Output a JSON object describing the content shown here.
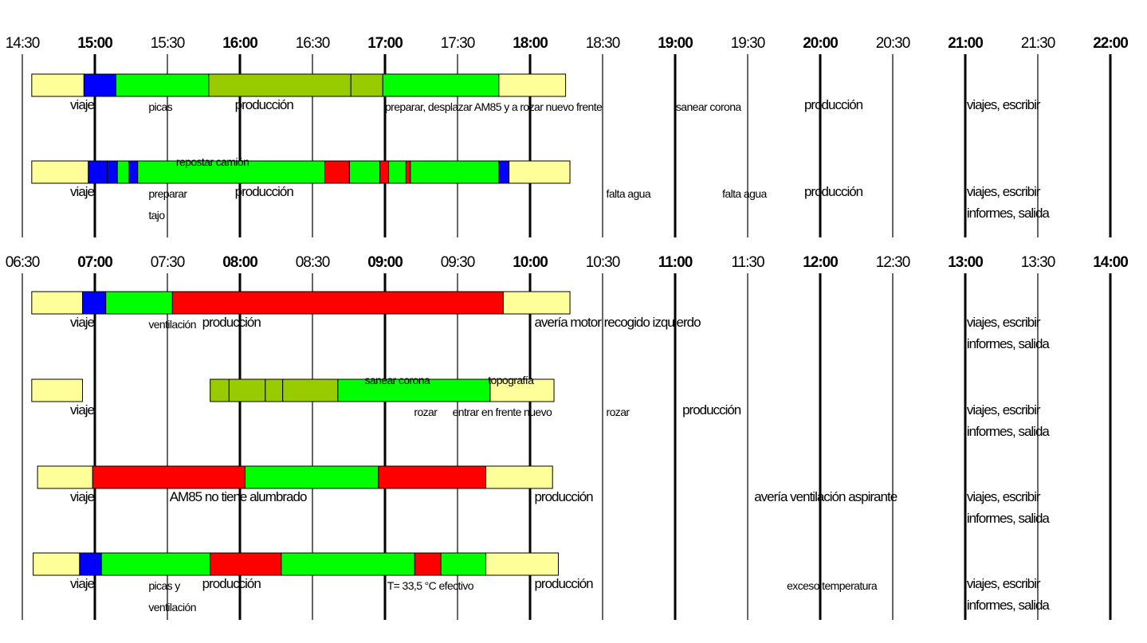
{
  "palette": {
    "travel": "#ffff99",
    "prep": "#0000ff",
    "production": "#00ff00",
    "task": "#99cc00",
    "fault": "#ff0000",
    "edge": "#000000"
  },
  "header_top": {
    "labels": [
      "14:30",
      "15:00",
      "15:30",
      "16:00",
      "16:30",
      "17:00",
      "17:30",
      "18:00",
      "18:30",
      "19:00",
      "19:30",
      "20:00",
      "20:30",
      "21:00",
      "21:30",
      "22:00"
    ]
  },
  "header_bottom": {
    "labels": [
      "06:30",
      "07:00",
      "07:30",
      "08:00",
      "08:30",
      "09:00",
      "09:30",
      "10:00",
      "10:30",
      "11:00",
      "11:30",
      "12:00",
      "12:30",
      "13:00",
      "13:30",
      "14:00"
    ]
  },
  "rows": [
    {
      "start_col": 0.13,
      "segments": [
        {
          "dur": 0.36,
          "type": "travel"
        },
        {
          "dur": 0.22,
          "type": "prep"
        },
        {
          "dur": 0.64,
          "type": "production"
        },
        {
          "dur": 0.98,
          "type": "task"
        },
        {
          "dur": 0.22,
          "type": "task"
        },
        {
          "dur": 0.8,
          "type": "production"
        },
        {
          "dur": 0.46,
          "type": "travel"
        }
      ],
      "labels": [
        {
          "text": "viaje",
          "col": 0.66,
          "dy": 16,
          "size": "lg"
        },
        {
          "text": "picas",
          "col": 1.74,
          "dy": 18,
          "size": "sm"
        },
        {
          "text": "producción",
          "col": 2.93,
          "dy": 16,
          "size": "lg"
        },
        {
          "text": "preparar, desplazar AM85 y  a rozar nuevo frente",
          "col": 5.0,
          "dy": 18,
          "size": "sm"
        },
        {
          "text": "sanear corona",
          "col": 9.01,
          "dy": 18,
          "size": "sm"
        },
        {
          "text": "producción",
          "col": 10.78,
          "dy": 16,
          "size": "lg"
        },
        {
          "text": "viajes, escribir",
          "col": 13.02,
          "dy": 16,
          "size": "lg"
        }
      ]
    },
    {
      "start_col": 0.13,
      "segments": [
        {
          "dur": 0.39,
          "type": "travel"
        },
        {
          "dur": 0.13,
          "type": "prep"
        },
        {
          "dur": 0.07,
          "type": "prep"
        },
        {
          "dur": 0.08,
          "type": "production"
        },
        {
          "dur": 0.06,
          "type": "prep"
        },
        {
          "dur": 1.29,
          "type": "production"
        },
        {
          "dur": 0.17,
          "type": "fault"
        },
        {
          "dur": 0.21,
          "type": "production"
        },
        {
          "dur": 0.06,
          "type": "fault"
        },
        {
          "dur": 0.12,
          "type": "production"
        },
        {
          "dur": 0.03,
          "type": "fault"
        },
        {
          "dur": 0.61,
          "type": "production"
        },
        {
          "dur": 0.07,
          "type": "prep"
        },
        {
          "dur": 0.42,
          "type": "travel"
        }
      ],
      "labels": [
        {
          "text": "repostar camión",
          "col": 2.12,
          "dy": -22,
          "size": "sm"
        },
        {
          "text": "viaje",
          "col": 0.66,
          "dy": 16,
          "size": "lg"
        },
        {
          "text": "preparar",
          "col": 1.74,
          "dy": 18,
          "size": "sm"
        },
        {
          "text": "tajo",
          "col": 1.74,
          "dy": 45,
          "size": "sm"
        },
        {
          "text": "producción",
          "col": 2.93,
          "dy": 16,
          "size": "lg"
        },
        {
          "text": "falta agua",
          "col": 8.05,
          "dy": 18,
          "size": "sm"
        },
        {
          "text": "falta agua",
          "col": 9.65,
          "dy": 18,
          "size": "sm"
        },
        {
          "text": "producción",
          "col": 10.78,
          "dy": 16,
          "size": "lg"
        },
        {
          "text": "viajes, escribir",
          "col": 13.02,
          "dy": 16,
          "size": "lg"
        },
        {
          "text": "informes, salida",
          "col": 13.02,
          "dy": 43,
          "size": "lg"
        }
      ]
    },
    {
      "start_col": 0.13,
      "segments": [
        {
          "dur": 0.35,
          "type": "travel"
        },
        {
          "dur": 0.16,
          "type": "prep"
        },
        {
          "dur": 0.46,
          "type": "production"
        },
        {
          "dur": 2.28,
          "type": "fault"
        },
        {
          "dur": 0.46,
          "type": "travel"
        }
      ],
      "labels": [
        {
          "text": "viaje",
          "col": 0.66,
          "dy": 16,
          "size": "lg"
        },
        {
          "text": "ventilación",
          "col": 1.74,
          "dy": 18,
          "size": "sm"
        },
        {
          "text": "producción",
          "col": 2.48,
          "dy": 16,
          "size": "lg"
        },
        {
          "text": "avería motor recogido izquierdo",
          "col": 7.06,
          "dy": 16,
          "size": "lg"
        },
        {
          "text": "viajes, escribir",
          "col": 13.02,
          "dy": 16,
          "size": "lg"
        },
        {
          "text": "informes, salida",
          "col": 13.02,
          "dy": 43,
          "size": "lg"
        }
      ]
    },
    {
      "start_col": 0.13,
      "segments": [
        {
          "dur": 0.35,
          "type": "travel"
        },
        {
          "dur": 0.88,
          "type": "blank"
        },
        {
          "dur": 0.13,
          "type": "task"
        },
        {
          "dur": 0.25,
          "type": "task"
        },
        {
          "dur": 0.12,
          "type": "task"
        },
        {
          "dur": 0.38,
          "type": "task"
        },
        {
          "dur": 1.05,
          "type": "production"
        },
        {
          "dur": 0.44,
          "type": "travel"
        }
      ],
      "labels": [
        {
          "text": "sanear corona",
          "col": 4.72,
          "dy": -22,
          "size": "sm"
        },
        {
          "text": "topografía",
          "col": 6.42,
          "dy": -22,
          "size": "sm"
        },
        {
          "text": "viaje",
          "col": 0.66,
          "dy": 16,
          "size": "lg"
        },
        {
          "text": "rozar",
          "col": 5.4,
          "dy": 18,
          "size": "sm"
        },
        {
          "text": "entrar en frente nuevo",
          "col": 5.93,
          "dy": 18,
          "size": "sm"
        },
        {
          "text": "rozar",
          "col": 8.05,
          "dy": 18,
          "size": "sm"
        },
        {
          "text": "producción",
          "col": 9.1,
          "dy": 16,
          "size": "lg"
        },
        {
          "text": "viajes, escribir",
          "col": 13.02,
          "dy": 16,
          "size": "lg"
        },
        {
          "text": "informes, salida",
          "col": 13.02,
          "dy": 43,
          "size": "lg"
        }
      ]
    },
    {
      "start_col": 0.21,
      "segments": [
        {
          "dur": 0.38,
          "type": "travel"
        },
        {
          "dur": 1.05,
          "type": "fault"
        },
        {
          "dur": 0.92,
          "type": "production"
        },
        {
          "dur": 0.74,
          "type": "fault"
        },
        {
          "dur": 0.46,
          "type": "travel"
        }
      ],
      "labels": [
        {
          "text": "viaje",
          "col": 0.66,
          "dy": 16,
          "size": "lg"
        },
        {
          "text": "AM85 no tiene alumbrado",
          "col": 2.03,
          "dy": 16,
          "size": "lg"
        },
        {
          "text": "producción",
          "col": 7.06,
          "dy": 16,
          "size": "lg"
        },
        {
          "text": "avería ventilación aspirante",
          "col": 10.09,
          "dy": 16,
          "size": "lg"
        },
        {
          "text": "viajes, escribir",
          "col": 13.02,
          "dy": 16,
          "size": "lg"
        },
        {
          "text": "informes, salida",
          "col": 13.02,
          "dy": 43,
          "size": "lg"
        }
      ]
    },
    {
      "start_col": 0.15,
      "segments": [
        {
          "dur": 0.32,
          "type": "travel"
        },
        {
          "dur": 0.15,
          "type": "prep"
        },
        {
          "dur": 0.75,
          "type": "production"
        },
        {
          "dur": 0.49,
          "type": "fault"
        },
        {
          "dur": 0.92,
          "type": "production"
        },
        {
          "dur": 0.18,
          "type": "fault"
        },
        {
          "dur": 0.31,
          "type": "production"
        },
        {
          "dur": 0.5,
          "type": "travel"
        }
      ],
      "labels": [
        {
          "text": "viaje",
          "col": 0.66,
          "dy": 16,
          "size": "lg"
        },
        {
          "text": "picas y",
          "col": 1.74,
          "dy": 18,
          "size": "sm"
        },
        {
          "text": "ventilación",
          "col": 1.74,
          "dy": 45,
          "size": "sm"
        },
        {
          "text": "producción",
          "col": 2.48,
          "dy": 16,
          "size": "lg"
        },
        {
          "text": "T= 33,5 °C efectivo",
          "col": 5.03,
          "dy": 18,
          "size": "sm"
        },
        {
          "text": "producción",
          "col": 7.06,
          "dy": 16,
          "size": "lg"
        },
        {
          "text": "exceso temperatura",
          "col": 10.54,
          "dy": 18,
          "size": "sm"
        },
        {
          "text": "viajes, escribir",
          "col": 13.02,
          "dy": 16,
          "size": "lg"
        },
        {
          "text": "informes, salida",
          "col": 13.02,
          "dy": 43,
          "size": "lg"
        }
      ]
    }
  ]
}
